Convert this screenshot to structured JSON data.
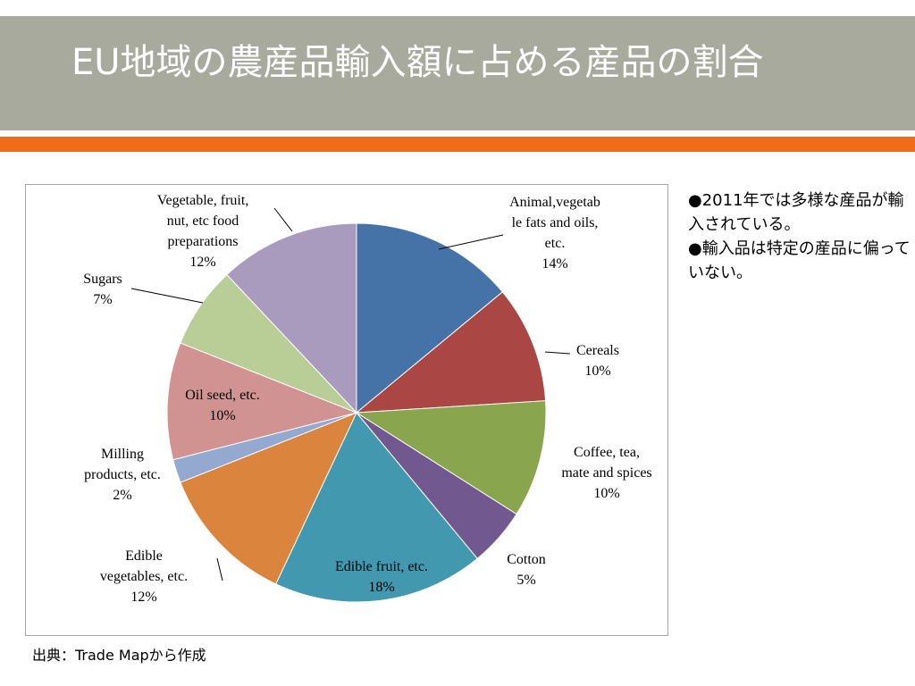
{
  "slide": {
    "title": "EU地域の農産品輸入額に占める産品の割合",
    "notes": [
      "●2011年では多様な産品が輸入されている。",
      "●輸入品は特定の産品に偏っていない。"
    ],
    "source": "出典：Trade Mapから作成"
  },
  "colors": {
    "title_band": "#a7aa9c",
    "accent_bar": "#ee6c1a",
    "title_text": "#ffffff"
  },
  "chart_data": {
    "type": "pie",
    "title": "",
    "start_angle_deg": 0,
    "direction": "clockwise",
    "value_unit": "%",
    "slices": [
      {
        "label": [
          "Animal,vegetab",
          "le fats and oils,",
          "etc."
        ],
        "value": 14,
        "pct_label": "14%",
        "color": "#4572a7"
      },
      {
        "label": [
          "Cereals"
        ],
        "value": 10,
        "pct_label": "10%",
        "color": "#aa4643"
      },
      {
        "label": [
          "Coffee, tea,",
          "mate and spices"
        ],
        "value": 10,
        "pct_label": "10%",
        "color": "#89a54e"
      },
      {
        "label": [
          "Cotton"
        ],
        "value": 5,
        "pct_label": "5%",
        "color": "#71588f"
      },
      {
        "label": [
          "Edible fruit, etc."
        ],
        "value": 18,
        "pct_label": "18%",
        "color": "#4198af"
      },
      {
        "label": [
          "Edible",
          "vegetables, etc."
        ],
        "value": 12,
        "pct_label": "12%",
        "color": "#db843d"
      },
      {
        "label": [
          "Milling",
          "products, etc."
        ],
        "value": 2,
        "pct_label": "2%",
        "color": "#93a9cf"
      },
      {
        "label": [
          "Oil seed, etc."
        ],
        "value": 10,
        "pct_label": "10%",
        "color": "#d19392"
      },
      {
        "label": [
          "Sugars"
        ],
        "value": 7,
        "pct_label": "7%",
        "color": "#b9cd96"
      },
      {
        "label": [
          "Vegetable, fruit,",
          "nut, etc food",
          "preparations"
        ],
        "value": 12,
        "pct_label": "12%",
        "color": "#a99bbd"
      }
    ]
  }
}
